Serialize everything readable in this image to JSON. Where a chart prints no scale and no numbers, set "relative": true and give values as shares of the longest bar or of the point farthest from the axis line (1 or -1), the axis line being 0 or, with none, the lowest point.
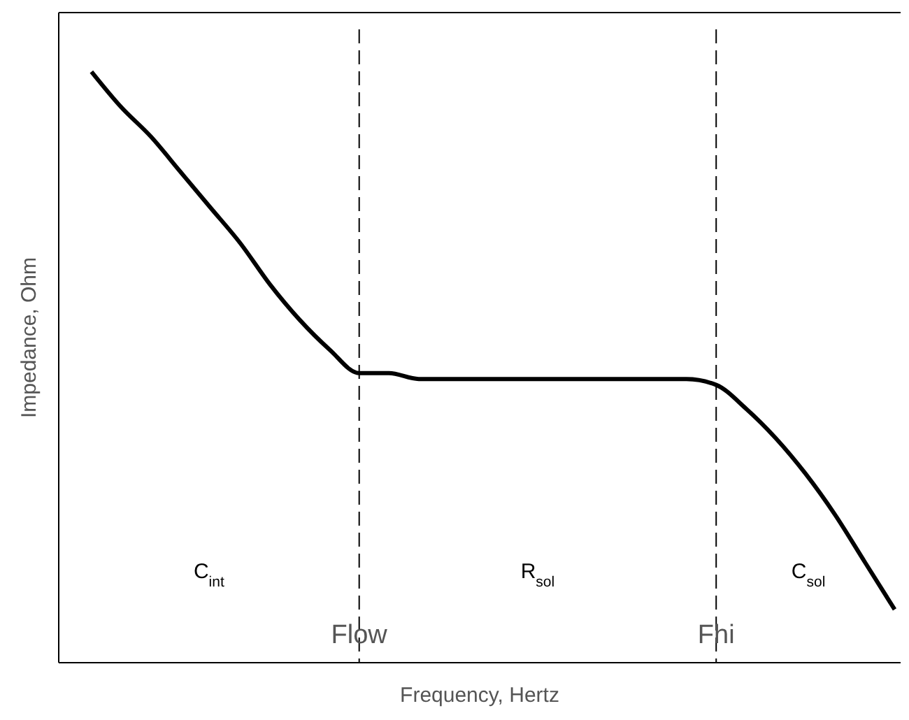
{
  "chart_data": {
    "type": "line",
    "relative": true,
    "xlabel": "Frequency, Hertz",
    "ylabel": "Impedance, Ohm",
    "categories": [
      null,
      null,
      null,
      null,
      null,
      null,
      null,
      null,
      null,
      null,
      null,
      null,
      null,
      null,
      null,
      null,
      null,
      null,
      null,
      null,
      null,
      null,
      null,
      null,
      null,
      null,
      null,
      null
    ],
    "series": [
      {
        "color": "#000000",
        "values": [
          1.0,
          0.94,
          0.89,
          0.83,
          0.77,
          0.71,
          0.64,
          0.58,
          0.53,
          0.49,
          0.49,
          0.48,
          0.48,
          0.48,
          0.48,
          0.48,
          0.48,
          0.48,
          0.48,
          0.48,
          0.48,
          0.47,
          0.43,
          0.38,
          0.32,
          0.25,
          0.17,
          0.09
        ]
      }
    ],
    "annotations": [
      "C$_{int}$",
      "Flow",
      "R$_{sol}$",
      "Fhi",
      "C$_{sol}$"
    ],
    "marker": "none",
    "line_style": "solid",
    "tick_labels": false
  }
}
